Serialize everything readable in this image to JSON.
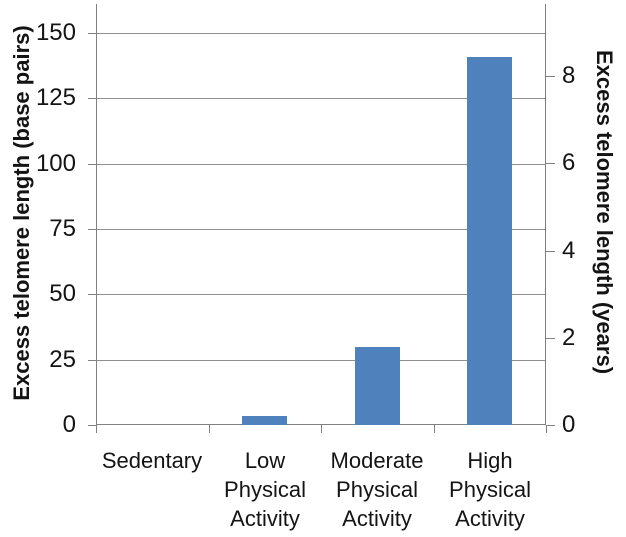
{
  "chart_data": {
    "type": "bar",
    "title": "",
    "categories": [
      "Sedentary",
      "Low Physical Activity",
      "Moderate Physical Activity",
      "High Physical Activity"
    ],
    "category_label_lines": [
      [
        "Sedentary"
      ],
      [
        "Low",
        "Physical",
        "Activity"
      ],
      [
        "Moderate",
        "Physical",
        "Activity"
      ],
      [
        "High",
        "Physical",
        "Activity"
      ]
    ],
    "series": [
      {
        "name": "Excess telomere length",
        "values_base_pairs": [
          0,
          3.5,
          30,
          141
        ],
        "values_years": [
          0,
          0.21,
          1.8,
          8.4
        ]
      }
    ],
    "ylabel_left": "Excess telomere length (base pairs)",
    "ylabel_right": "Excess telomere length (years)",
    "left_axis_ticks": [
      0,
      25,
      50,
      75,
      100,
      125,
      150
    ],
    "right_axis_ticks": [
      0,
      2,
      4,
      6,
      8
    ],
    "left_axis_range": [
      0,
      161
    ],
    "right_axis_range": [
      0,
      9.65
    ],
    "grid": true,
    "legend": "none",
    "colors": {
      "bar": "#4f81bd",
      "axis": "#808080",
      "gridline": "#8e8e8e",
      "text": "#141414",
      "background": "#ffffff"
    }
  }
}
